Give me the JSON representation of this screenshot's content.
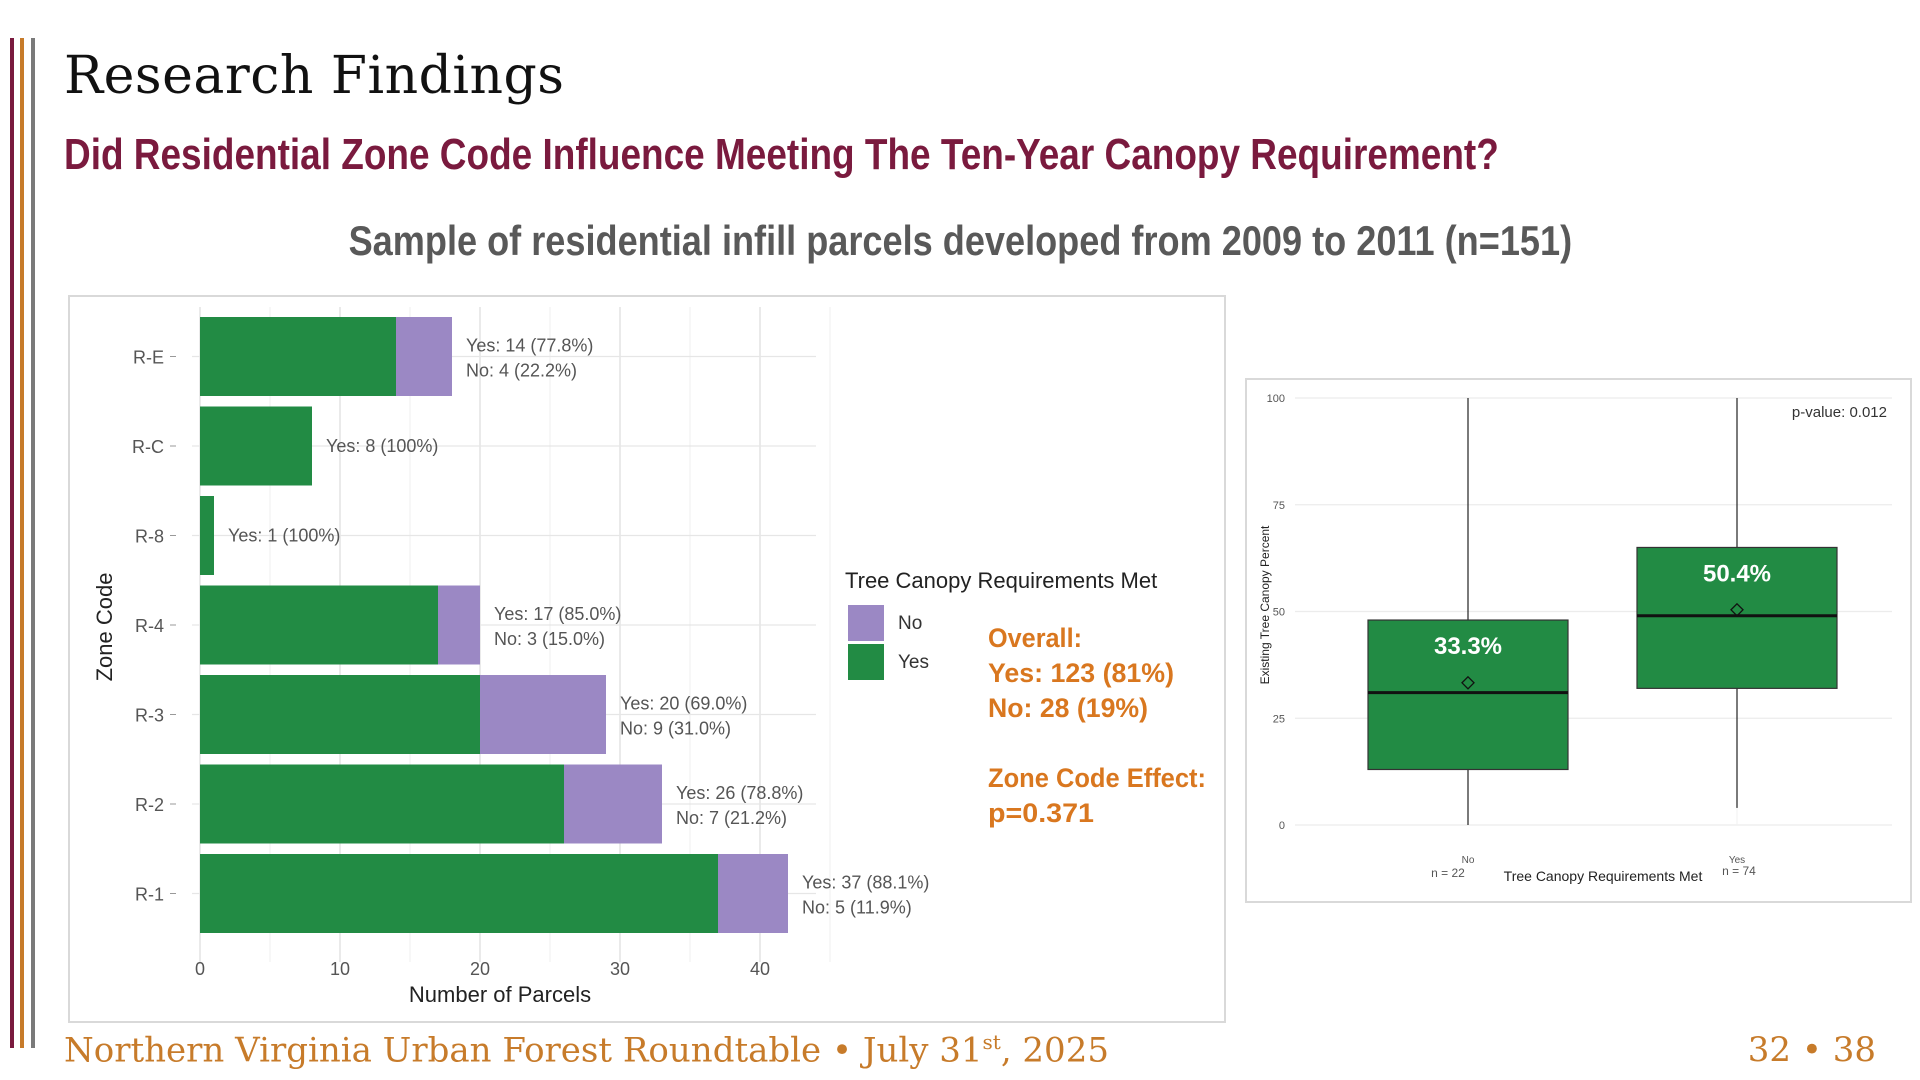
{
  "slide": {
    "title": "Research Findings",
    "question": "Did Residential Zone Code Influence Meeting The Ten-Year Canopy Requirement?",
    "sample": "Sample of residential infill parcels developed from 2009 to 2011 (n=151)"
  },
  "colors": {
    "accent_maroon": "#7a1a3e",
    "accent_orange": "#c77b2a",
    "bar_yes": "#228b44",
    "bar_no": "#9b88c4",
    "annotation_orange": "#d9771f",
    "side_bars": [
      "#7a1a3e",
      "#c77b2a",
      "#7a7a7a"
    ]
  },
  "annotations": {
    "overall_label": "Overall:",
    "overall_yes": "Yes: 123 (81%)",
    "overall_no": "No: 28 (19%)",
    "effect_label": "Zone Code Effect:",
    "effect_value": "p=0.371"
  },
  "chart_data": [
    {
      "type": "bar",
      "orientation": "horizontal",
      "stacked": true,
      "categories": [
        "R-E",
        "R-C",
        "R-8",
        "R-4",
        "R-3",
        "R-2",
        "R-1"
      ],
      "series": [
        {
          "name": "Yes",
          "values": [
            14,
            8,
            1,
            17,
            20,
            26,
            37
          ]
        },
        {
          "name": "No",
          "values": [
            4,
            0,
            0,
            3,
            9,
            7,
            5
          ]
        }
      ],
      "data_labels": [
        [
          "Yes: 14 (77.8%)",
          "No: 4 (22.2%)"
        ],
        [
          "Yes: 8 (100%)"
        ],
        [
          "Yes: 1 (100%)"
        ],
        [
          "Yes: 17 (85.0%)",
          "No: 3 (15.0%)"
        ],
        [
          "Yes: 20 (69.0%)",
          "No: 9 (31.0%)"
        ],
        [
          "Yes: 26 (78.8%)",
          "No: 7 (21.2%)"
        ],
        [
          "Yes: 37 (88.1%)",
          "No: 5 (11.9%)"
        ]
      ],
      "xlabel": "Number of Parcels",
      "ylabel": "Zone Code",
      "xlim": [
        0,
        44
      ],
      "xticks": [
        0,
        10,
        20,
        30,
        40
      ],
      "legend_title": "Tree Canopy Requirements Met",
      "legend_entries": [
        "No",
        "Yes"
      ],
      "legend_position": "right",
      "grid": true
    },
    {
      "type": "box",
      "categories": [
        "No",
        "Yes"
      ],
      "counts": [
        "n = 22",
        "n = 74"
      ],
      "boxes": [
        {
          "q1": 13,
          "median": 31,
          "q3": 48,
          "min": 0,
          "max": 100,
          "mean": 33.3,
          "mean_label": "33.3%"
        },
        {
          "q1": 32,
          "median": 49,
          "q3": 65,
          "min": 4,
          "max": 100,
          "mean": 50.4,
          "mean_label": "50.4%"
        }
      ],
      "xlabel": "Tree Canopy Requirements Met",
      "ylabel": "Existing Tree Canopy Percent",
      "ylim": [
        0,
        100
      ],
      "yticks": [
        "0",
        "25",
        "50",
        "75",
        "100"
      ],
      "annotation": "p-value: 0.012",
      "grid": true
    }
  ],
  "footer": {
    "event": "Northern Virginia Urban Forest Roundtable • July 31",
    "superscript": "st",
    "year": ", 2025",
    "page": "32 • 38"
  }
}
